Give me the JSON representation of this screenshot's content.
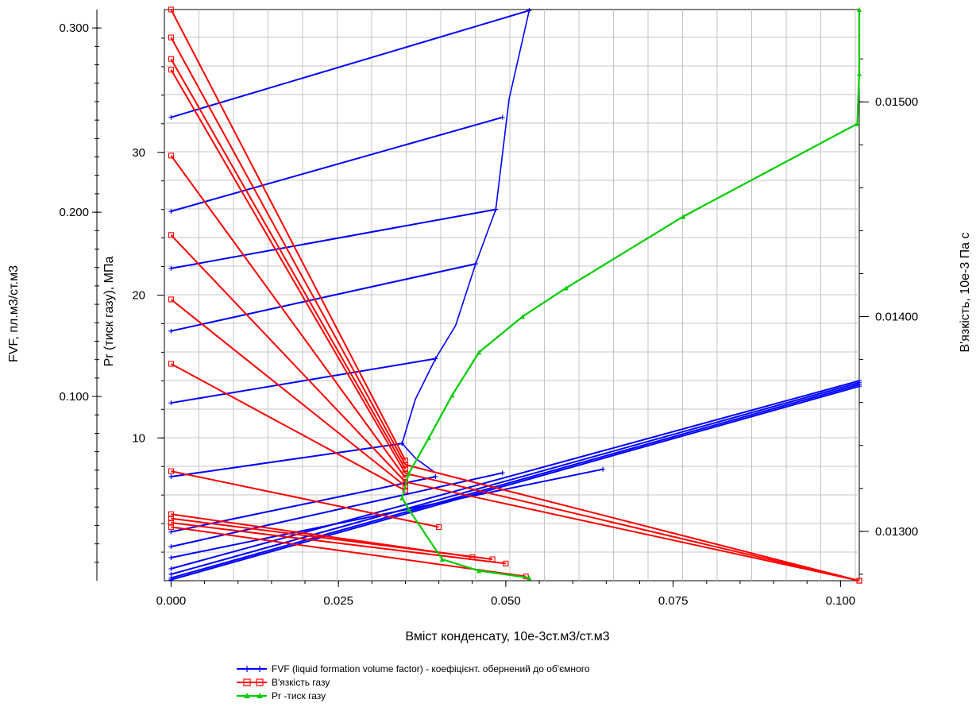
{
  "chart_data": {
    "type": "line",
    "xlabel": "Вміст конденсату, 10е-3ст.м3/ст.м3",
    "ylabel_fvf": "FVF, пл.м3/ст.м3",
    "ylabel_pr": "Pr (тиск газу), МПа",
    "ylabel_visc": "В'язкість, 10е-3 Па с",
    "xlim": [
      -0.001,
      0.1028
    ],
    "ylim_fvf": [
      0.0,
      0.31
    ],
    "ylim_pr": [
      0.0,
      40.0
    ],
    "ylim_visc": [
      0.01277,
      0.01543
    ],
    "x_ticks": [
      "0.000",
      "0.025",
      "0.050",
      "0.075",
      "0.100"
    ],
    "fvf_ticks": [
      "0.100",
      "0.200",
      "0.300"
    ],
    "pr_ticks": [
      "10",
      "20",
      "30"
    ],
    "visc_ticks": [
      "0.01300",
      "0.01400",
      "0.01500"
    ],
    "grid": true,
    "legend_position": "bottom",
    "series": [
      {
        "name": "FVF (liquid formation volume factor) - коефіцієнт. обернений до об'ємного",
        "color": "#0000ff",
        "marker": "plus",
        "lines": [
          [
            [
              0.0,
              0.2515
            ],
            [
              0.0535,
              0.3095
            ]
          ],
          [
            [
              0.0,
              0.2005
            ],
            [
              0.0495,
              0.2515
            ]
          ],
          [
            [
              0.0,
              0.1695
            ],
            [
              0.0485,
              0.2015
            ]
          ],
          [
            [
              0.0,
              0.1355
            ],
            [
              0.0455,
              0.172
            ]
          ],
          [
            [
              0.0,
              0.0965
            ],
            [
              0.0395,
              0.1205
            ]
          ],
          [
            [
              0.0,
              0.0565
            ],
            [
              0.0345,
              0.0745
            ]
          ],
          [
            [
              0.0,
              0.0265
            ],
            [
              0.0395,
              0.0565
            ]
          ],
          [
            [
              0.0,
              0.0185
            ],
            [
              0.0495,
              0.0585
            ]
          ],
          [
            [
              0.0,
              0.0125
            ],
            [
              0.0645,
              0.0605
            ]
          ],
          [
            [
              0.0,
              0.0065
            ],
            [
              0.1028,
              0.1085
            ]
          ],
          [
            [
              0.0,
              0.0035
            ],
            [
              0.1028,
              0.1075
            ]
          ],
          [
            [
              0.0,
              0.0015
            ],
            [
              0.1028,
              0.1065
            ]
          ],
          [
            [
              0.0,
              0.0005
            ],
            [
              0.1028,
              0.1055
            ]
          ]
        ],
        "envelope": [
          [
            0.0535,
            0.3095
          ],
          [
            0.0505,
            0.2615
          ],
          [
            0.0485,
            0.2015
          ],
          [
            0.0455,
            0.172
          ],
          [
            0.0425,
            0.1385
          ],
          [
            0.0395,
            0.1205
          ],
          [
            0.0365,
            0.0985
          ],
          [
            0.0345,
            0.0745
          ],
          [
            0.0365,
            0.0665
          ],
          [
            0.0395,
            0.0585
          ]
        ]
      },
      {
        "name": "В'язкість газу",
        "color": "#ff0000",
        "marker": "square",
        "lines": [
          [
            [
              0.0,
              0.01543
            ],
            [
              0.035,
              0.01333
            ]
          ],
          [
            [
              0.0,
              0.0153
            ],
            [
              0.035,
              0.01331
            ]
          ],
          [
            [
              0.0,
              0.0152
            ],
            [
              0.035,
              0.01329
            ]
          ],
          [
            [
              0.0,
              0.01515
            ],
            [
              0.035,
              0.01327
            ]
          ],
          [
            [
              0.0,
              0.01475
            ],
            [
              0.035,
              0.01325
            ]
          ],
          [
            [
              0.0,
              0.01438
            ],
            [
              0.035,
              0.01323
            ]
          ],
          [
            [
              0.0,
              0.01408
            ],
            [
              0.035,
              0.01321
            ]
          ],
          [
            [
              0.0,
              0.01378
            ],
            [
              0.035,
              0.01319
            ]
          ],
          [
            [
              0.0,
              0.01328
            ],
            [
              0.04,
              0.01302
            ]
          ],
          [
            [
              0.0,
              0.01308
            ],
            [
              0.045,
              0.01288
            ]
          ],
          [
            [
              0.0,
              0.01306
            ],
            [
              0.048,
              0.01287
            ]
          ],
          [
            [
              0.0,
              0.01304
            ],
            [
              0.05,
              0.01285
            ]
          ],
          [
            [
              0.0,
              0.01302
            ],
            [
              0.053,
              0.01279
            ]
          ],
          [
            [
              0.035,
              0.01331
            ],
            [
              0.1028,
              0.01277
            ]
          ],
          [
            [
              0.035,
              0.01327
            ],
            [
              0.1028,
              0.01277
            ]
          ],
          [
            [
              0.035,
              0.01323
            ],
            [
              0.1028,
              0.01277
            ]
          ]
        ]
      },
      {
        "name": "Pr -тиск газу",
        "color": "#00cc00",
        "marker": "triangle",
        "points": [
          [
            0.0535,
            0.2
          ],
          [
            0.046,
            0.7
          ],
          [
            0.0405,
            1.5
          ],
          [
            0.0355,
            5.0
          ],
          [
            0.0345,
            5.8
          ],
          [
            0.0355,
            7.5
          ],
          [
            0.0385,
            10.0
          ],
          [
            0.042,
            13.0
          ],
          [
            0.046,
            16.0
          ],
          [
            0.0525,
            18.5
          ],
          [
            0.059,
            20.5
          ],
          [
            0.0765,
            25.5
          ],
          [
            0.1025,
            32.0
          ],
          [
            0.1028,
            35.5
          ],
          [
            0.1028,
            40.0
          ]
        ]
      }
    ]
  }
}
